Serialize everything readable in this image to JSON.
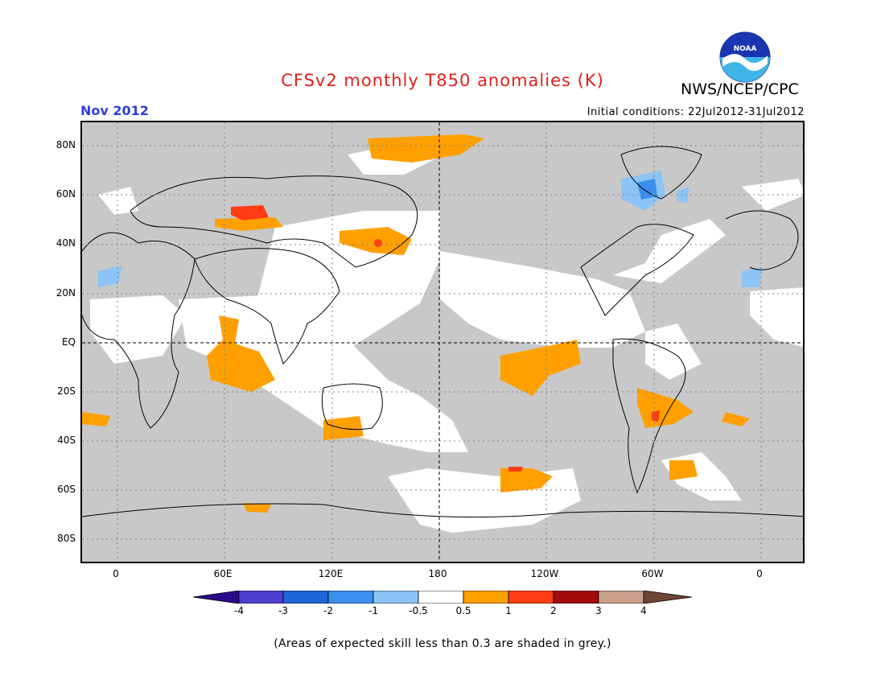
{
  "title": "CFSv2 monthly T850 anomalies (K)",
  "month": "Nov 2012",
  "initial_conditions": "Initial conditions: 22Jul2012-31Jul2012",
  "organization": "NWS/NCEP/CPC",
  "logo_text": "NOAA",
  "lat_labels": [
    "80N",
    "60N",
    "40N",
    "20N",
    "EQ",
    "20S",
    "40S",
    "60S",
    "80S"
  ],
  "lon_labels": [
    "0",
    "60E",
    "120E",
    "180",
    "120W",
    "60W",
    "0"
  ],
  "colorbar": {
    "ticks": [
      "-4",
      "-3",
      "-2",
      "-1",
      "-0.5",
      "0.5",
      "1",
      "2",
      "3",
      "4"
    ],
    "colors": [
      "#2a0a8a",
      "#4b3fd0",
      "#1f64d8",
      "#3a8ff0",
      "#8cc4f5",
      "#ffffff",
      "#ffa000",
      "#ff3c14",
      "#a00a0a",
      "#c8a08c",
      "#6e4632"
    ]
  },
  "note": "(Areas of expected skill less than 0.3 are shaded in grey.)",
  "colors": {
    "grey_mask": "#c8c8c8",
    "title": "#e0201a",
    "month": "#2f3fd8"
  }
}
